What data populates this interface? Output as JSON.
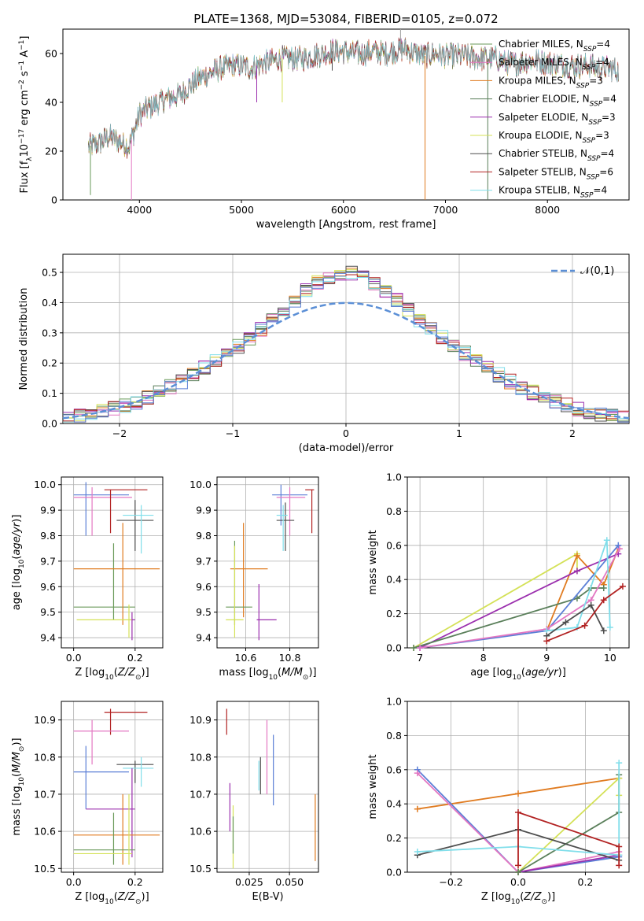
{
  "figure_title": "PLATE=1368, MJD=53084, FIBERID=0105, z=0.072",
  "colors": {
    "Chabrier MILES": "#6a9a5a",
    "Salpeter MILES": "#e377c2",
    "Kroupa MILES": "#e07b20",
    "Chabrier ELODIE": "#5a7f5a",
    "Salpeter ELODIE": "#9b2fae",
    "Kroupa ELODIE": "#d4e157",
    "Chabrier STELIB": "#4d4d4d",
    "Salpeter STELIB": "#b22222",
    "Kroupa STELIB": "#80deea",
    "blue_extra": "#5b7fd6",
    "normal_curve": "#5b8fd6",
    "grid": "#b0b0b0"
  },
  "chart_data": [
    {
      "id": "spectrum",
      "type": "line",
      "title": "PLATE=1368, MJD=53084, FIBERID=0105, z=0.072",
      "xlabel": "wavelength [Angstrom, rest frame]",
      "ylabel": "Flux [f_λ 10^-17 erg cm^-2 s^-1 A^-1]",
      "xlim": [
        3250,
        8800
      ],
      "ylim": [
        0,
        70
      ],
      "xticks": [
        "4000",
        "5000",
        "6000",
        "7000",
        "8000"
      ],
      "yticks": [
        "0",
        "20",
        "40",
        "60"
      ],
      "grid": false,
      "legend_position": "upper right",
      "legend": [
        "Chabrier MILES, N_SSP=4",
        "Salpeter MILES, N_SSP=4",
        "Kroupa MILES, N_SSP=3",
        "Chabrier ELODIE, N_SSP=4",
        "Salpeter ELODIE, N_SSP=3",
        "Kroupa ELODIE, N_SSP=3",
        "Chabrier STELIB, N_SSP=4",
        "Salpeter STELIB, N_SSP=6",
        "Kroupa STELIB, N_SSP=4"
      ],
      "continuum": {
        "x": [
          3500,
          3600,
          3700,
          3800,
          3900,
          4000,
          4100,
          4200,
          4300,
          4400,
          4500,
          4600,
          4700,
          4800,
          4900,
          5000,
          5100,
          5200,
          5300,
          5400,
          5500,
          5600,
          5700,
          5800,
          5900,
          6000,
          6100,
          6200,
          6300,
          6400,
          6500,
          6600,
          6700,
          6800,
          6900,
          7000,
          7100,
          7200,
          7300,
          7400,
          7500,
          7600,
          7700,
          7800,
          7900,
          8000,
          8100,
          8200,
          8300,
          8400,
          8500,
          8600,
          8700
        ],
        "y": [
          22,
          23,
          26,
          24,
          22,
          35,
          38,
          40,
          42,
          43,
          47,
          50,
          52,
          54,
          55,
          55,
          54,
          56,
          57,
          58,
          58,
          58,
          59,
          60,
          61,
          61,
          60,
          60,
          61,
          60,
          61,
          62,
          60,
          59,
          60,
          59,
          59,
          59,
          58,
          58,
          58,
          56,
          56,
          57,
          57,
          56,
          56,
          55,
          55,
          55,
          54,
          54,
          53
        ]
      },
      "dips": [
        {
          "x": 3520,
          "y": 2
        },
        {
          "x": 3922,
          "y": 0
        },
        {
          "x": 6800,
          "y": 0
        },
        {
          "x": 7415,
          "y": 0
        },
        {
          "x": 5150,
          "y": 40
        },
        {
          "x": 5400,
          "y": 40
        },
        {
          "x": 5890,
          "y": 53
        }
      ]
    },
    {
      "id": "residuals",
      "type": "histogram",
      "xlabel": "(data-model)/error",
      "ylabel": "Normed distribution",
      "xlim": [
        -2.5,
        2.5
      ],
      "ylim": [
        0,
        0.56
      ],
      "xticks": [
        "−2",
        "−1",
        "0",
        "1",
        "2"
      ],
      "yticks": [
        "0.0",
        "0.1",
        "0.2",
        "0.3",
        "0.4",
        "0.5"
      ],
      "grid": true,
      "legend_position": "upper right",
      "legend": [
        "𝒩(0,1)"
      ],
      "bin_width": 0.1,
      "note": "nine model histograms plus blue histogram, each close to the standard normal curve"
    },
    {
      "id": "age-vs-Z",
      "type": "errorbar",
      "xlabel": "Z [log10(Z/Z⊙)]",
      "ylabel": "age [log10(age/yr)]",
      "xlim": [
        -0.04,
        0.29
      ],
      "ylim": [
        9.36,
        10.03
      ],
      "xticks": [
        "0.0",
        "0.2"
      ],
      "yticks": [
        "9.4",
        "9.5",
        "9.6",
        "9.7",
        "9.8",
        "9.9",
        "10.0"
      ],
      "grid": true,
      "points": [
        {
          "model": "blue_extra",
          "x": 0.04,
          "y": 9.96,
          "xerr": [
            0.0,
            0.18
          ],
          "yerr": [
            9.8,
            10.01
          ]
        },
        {
          "model": "Salpeter MILES",
          "x": 0.06,
          "y": 9.95,
          "xerr": [
            0.0,
            0.19
          ],
          "yerr": [
            9.8,
            9.99
          ]
        },
        {
          "model": "Salpeter STELIB",
          "x": 0.12,
          "y": 9.98,
          "xerr": [
            0.1,
            0.24
          ],
          "yerr": [
            9.81,
            9.98
          ]
        },
        {
          "model": "Chabrier STELIB",
          "x": 0.2,
          "y": 9.86,
          "xerr": [
            0.14,
            0.26
          ],
          "yerr": [
            9.74,
            9.94
          ]
        },
        {
          "model": "Kroupa STELIB",
          "x": 0.22,
          "y": 9.88,
          "xerr": [
            0.16,
            0.26
          ],
          "yerr": [
            9.73,
            9.92
          ]
        },
        {
          "model": "Chabrier MILES",
          "x": 0.13,
          "y": 9.52,
          "xerr": [
            0.0,
            0.2
          ],
          "yerr": [
            9.47,
            9.77
          ]
        },
        {
          "model": "Kroupa MILES",
          "x": 0.16,
          "y": 9.67,
          "xerr": [
            0.0,
            0.28
          ],
          "yerr": [
            9.45,
            9.85
          ]
        },
        {
          "model": "Kroupa ELODIE",
          "x": 0.18,
          "y": 9.47,
          "xerr": [
            0.01,
            0.19
          ],
          "yerr": [
            9.4,
            9.53
          ]
        },
        {
          "model": "Salpeter ELODIE",
          "x": 0.19,
          "y": 9.47,
          "xerr": [
            0.19,
            0.2
          ],
          "yerr": [
            9.39,
            9.5
          ]
        }
      ]
    },
    {
      "id": "age-vs-mass",
      "type": "errorbar",
      "xlabel": "mass [log10(M/M⊙)]",
      "ylabel": "",
      "xlim": [
        10.47,
        10.93
      ],
      "ylim": [
        9.36,
        10.03
      ],
      "xticks": [
        "10.6",
        "10.8"
      ],
      "yticks": [
        "9.4",
        "9.5",
        "9.6",
        "9.7",
        "9.8",
        "9.9",
        "10.0"
      ],
      "grid": true,
      "points": [
        {
          "model": "blue_extra",
          "x": 10.76,
          "y": 9.96,
          "xerr": [
            10.72,
            10.88
          ],
          "yerr": [
            9.84,
            10.0
          ]
        },
        {
          "model": "Salpeter MILES",
          "x": 10.8,
          "y": 9.95,
          "xerr": [
            10.74,
            10.87
          ],
          "yerr": [
            9.8,
            9.99
          ]
        },
        {
          "model": "Salpeter STELIB",
          "x": 10.9,
          "y": 9.98,
          "xerr": [
            10.87,
            10.91
          ],
          "yerr": [
            9.81,
            9.98
          ]
        },
        {
          "model": "Chabrier STELIB",
          "x": 10.78,
          "y": 9.86,
          "xerr": [
            10.74,
            10.82
          ],
          "yerr": [
            9.74,
            9.93
          ]
        },
        {
          "model": "Kroupa STELIB",
          "x": 10.77,
          "y": 9.88,
          "xerr": [
            10.74,
            10.79
          ],
          "yerr": [
            9.74,
            9.92
          ]
        },
        {
          "model": "Kroupa MILES",
          "x": 10.59,
          "y": 9.67,
          "xerr": [
            10.53,
            10.7
          ],
          "yerr": [
            9.48,
            9.85
          ]
        },
        {
          "model": "Chabrier MILES",
          "x": 10.55,
          "y": 9.52,
          "xerr": [
            10.51,
            10.63
          ],
          "yerr": [
            9.45,
            9.78
          ]
        },
        {
          "model": "Kroupa ELODIE",
          "x": 10.55,
          "y": 9.47,
          "xerr": [
            10.51,
            10.59
          ],
          "yerr": [
            9.4,
            9.76
          ]
        },
        {
          "model": "Salpeter ELODIE",
          "x": 10.66,
          "y": 9.47,
          "xerr": [
            10.65,
            10.74
          ],
          "yerr": [
            9.39,
            9.61
          ]
        }
      ]
    },
    {
      "id": "weight-vs-age",
      "type": "line",
      "xlabel": "age [log10(age/yr)]",
      "ylabel": "mass weight",
      "xlim": [
        6.8,
        10.3
      ],
      "ylim": [
        0,
        1
      ],
      "xticks": [
        "7",
        "8",
        "9",
        "10"
      ],
      "yticks": [
        "0.0",
        "0.2",
        "0.4",
        "0.6",
        "0.8",
        "1.0"
      ],
      "grid": true,
      "series": [
        {
          "model": "Kroupa ELODIE",
          "x": [
            6.9,
            9.48,
            9.48
          ],
          "y": [
            0.0,
            0.55,
            0.45
          ]
        },
        {
          "model": "Kroupa MILES",
          "x": [
            9.0,
            9.48,
            9.9,
            10.13
          ],
          "y": [
            0.1,
            0.54,
            0.37,
            0.58
          ]
        },
        {
          "model": "Salpeter ELODIE",
          "x": [
            7.0,
            9.48,
            10.13
          ],
          "y": [
            0.0,
            0.45,
            0.55
          ]
        },
        {
          "model": "Chabrier ELODIE",
          "x": [
            6.9,
            9.48,
            9.7,
            9.9
          ],
          "y": [
            0.0,
            0.29,
            0.35,
            0.35
          ]
        },
        {
          "model": "blue_extra",
          "x": [
            7.0,
            9.0,
            10.13
          ],
          "y": [
            0.0,
            0.1,
            0.6
          ]
        },
        {
          "model": "Salpeter MILES",
          "x": [
            7.0,
            9.0,
            9.7,
            10.15
          ],
          "y": [
            0.0,
            0.11,
            0.28,
            0.58
          ]
        },
        {
          "model": "Kroupa STELIB",
          "x": [
            9.0,
            9.48,
            9.95,
            10.0
          ],
          "y": [
            0.1,
            0.12,
            0.63,
            0.12
          ]
        },
        {
          "model": "Chabrier STELIB",
          "x": [
            9.0,
            9.3,
            9.7,
            9.9
          ],
          "y": [
            0.07,
            0.15,
            0.25,
            0.1
          ]
        },
        {
          "model": "Salpeter STELIB",
          "x": [
            9.0,
            9.6,
            9.9,
            10.2
          ],
          "y": [
            0.04,
            0.13,
            0.28,
            0.36
          ]
        }
      ]
    },
    {
      "id": "mass-vs-Z",
      "type": "errorbar",
      "xlabel": "Z [log10(Z/Z⊙)]",
      "ylabel": "mass [log10(M/M⊙)]",
      "xlim": [
        -0.04,
        0.29
      ],
      "ylim": [
        10.49,
        10.95
      ],
      "xticks": [
        "0.0",
        "0.2"
      ],
      "yticks": [
        "10.5",
        "10.6",
        "10.7",
        "10.8",
        "10.9"
      ],
      "grid": true,
      "points": [
        {
          "model": "Salpeter STELIB",
          "x": 0.12,
          "y": 10.92,
          "xerr": [
            0.1,
            0.24
          ],
          "yerr": [
            10.86,
            10.93
          ]
        },
        {
          "model": "Salpeter MILES",
          "x": 0.06,
          "y": 10.87,
          "xerr": [
            0.0,
            0.18
          ],
          "yerr": [
            10.78,
            10.9
          ]
        },
        {
          "model": "Chabrier STELIB",
          "x": 0.2,
          "y": 10.78,
          "xerr": [
            0.14,
            0.26
          ],
          "yerr": [
            10.73,
            10.79
          ]
        },
        {
          "model": "Kroupa STELIB",
          "x": 0.22,
          "y": 10.77,
          "xerr": [
            0.16,
            0.26
          ],
          "yerr": [
            10.72,
            10.8
          ]
        },
        {
          "model": "blue_extra",
          "x": 0.04,
          "y": 10.76,
          "xerr": [
            0.0,
            0.18
          ],
          "yerr": [
            10.66,
            10.83
          ]
        },
        {
          "model": "Salpeter ELODIE",
          "x": 0.19,
          "y": 10.66,
          "xerr": [
            0.04,
            0.2
          ],
          "yerr": [
            10.53,
            10.77
          ]
        },
        {
          "model": "Kroupa MILES",
          "x": 0.16,
          "y": 10.59,
          "xerr": [
            0.0,
            0.28
          ],
          "yerr": [
            10.51,
            10.7
          ]
        },
        {
          "model": "Chabrier MILES",
          "x": 0.13,
          "y": 10.55,
          "xerr": [
            0.0,
            0.2
          ],
          "yerr": [
            10.51,
            10.65
          ]
        },
        {
          "model": "Kroupa ELODIE",
          "x": 0.18,
          "y": 10.54,
          "xerr": [
            0.0,
            0.19
          ],
          "yerr": [
            10.51,
            10.7
          ]
        }
      ]
    },
    {
      "id": "mass-vs-EBV",
      "type": "errorbar",
      "xlabel": "E(B-V)",
      "ylabel": "",
      "xlim": [
        0.005,
        0.068
      ],
      "ylim": [
        10.49,
        10.95
      ],
      "xticks": [
        "0.025",
        "0.050"
      ],
      "yticks": [
        "10.5",
        "10.6",
        "10.7",
        "10.8",
        "10.9"
      ],
      "grid": true,
      "points": [
        {
          "model": "Salpeter STELIB",
          "x": 0.011,
          "yerr": [
            10.86,
            10.93
          ]
        },
        {
          "model": "Salpeter ELODIE",
          "x": 0.013,
          "yerr": [
            10.6,
            10.73
          ]
        },
        {
          "model": "Kroupa ELODIE",
          "x": 0.015,
          "yerr": [
            10.5,
            10.67
          ]
        },
        {
          "model": "Chabrier MILES",
          "x": 0.015,
          "yerr": [
            10.54,
            10.64
          ]
        },
        {
          "model": "Chabrier STELIB",
          "x": 0.032,
          "yerr": [
            10.7,
            10.8
          ]
        },
        {
          "model": "Kroupa STELIB",
          "x": 0.031,
          "yerr": [
            10.71,
            10.79
          ]
        },
        {
          "model": "Salpeter MILES",
          "x": 0.036,
          "yerr": [
            10.7,
            10.9
          ]
        },
        {
          "model": "blue_extra",
          "x": 0.04,
          "yerr": [
            10.67,
            10.86
          ]
        },
        {
          "model": "Kroupa MILES",
          "x": 0.066,
          "yerr": [
            10.52,
            10.7
          ]
        }
      ]
    },
    {
      "id": "weight-vs-Z",
      "type": "line",
      "xlabel": "Z [log10(Z/Z⊙)]",
      "ylabel": "mass weight",
      "xlim": [
        -0.33,
        0.33
      ],
      "ylim": [
        0,
        1
      ],
      "xticks": [
        "−0.2",
        "0.0",
        "0.2"
      ],
      "yticks": [
        "0.0",
        "0.2",
        "0.4",
        "0.6",
        "0.8",
        "1.0"
      ],
      "grid": true,
      "series": [
        {
          "model": "Kroupa MILES",
          "x": [
            -0.3,
            0.0,
            0.3
          ],
          "y": [
            0.37,
            0.46,
            0.55
          ]
        },
        {
          "model": "blue_extra",
          "x": [
            -0.3,
            0.0,
            0.3
          ],
          "y": [
            0.6,
            0.0,
            0.09
          ]
        },
        {
          "model": "Salpeter MILES",
          "x": [
            -0.3,
            0.0,
            0.3
          ],
          "y": [
            0.58,
            0.0,
            0.12
          ]
        },
        {
          "model": "Salpeter ELODIE",
          "x": [
            0.0,
            0.3
          ],
          "y": [
            0.0,
            0.1
          ]
        },
        {
          "model": "Kroupa ELODIE",
          "x": [
            0.0,
            0.3,
            0.3
          ],
          "y": [
            0.0,
            0.55,
            0.45
          ]
        },
        {
          "model": "Chabrier ELODIE",
          "x": [
            0.0,
            0.3,
            0.3
          ],
          "y": [
            0.0,
            0.35,
            0.57
          ]
        },
        {
          "model": "Chabrier STELIB",
          "x": [
            -0.3,
            0.0,
            0.3
          ],
          "y": [
            0.1,
            0.25,
            0.07
          ]
        },
        {
          "model": "Kroupa STELIB",
          "x": [
            -0.3,
            0.0,
            0.3,
            0.3
          ],
          "y": [
            0.12,
            0.15,
            0.1,
            0.64
          ]
        },
        {
          "model": "Salpeter STELIB",
          "x": [
            0.0,
            0.0,
            0.3,
            0.3
          ],
          "y": [
            0.04,
            0.35,
            0.15,
            0.04
          ]
        }
      ]
    }
  ]
}
